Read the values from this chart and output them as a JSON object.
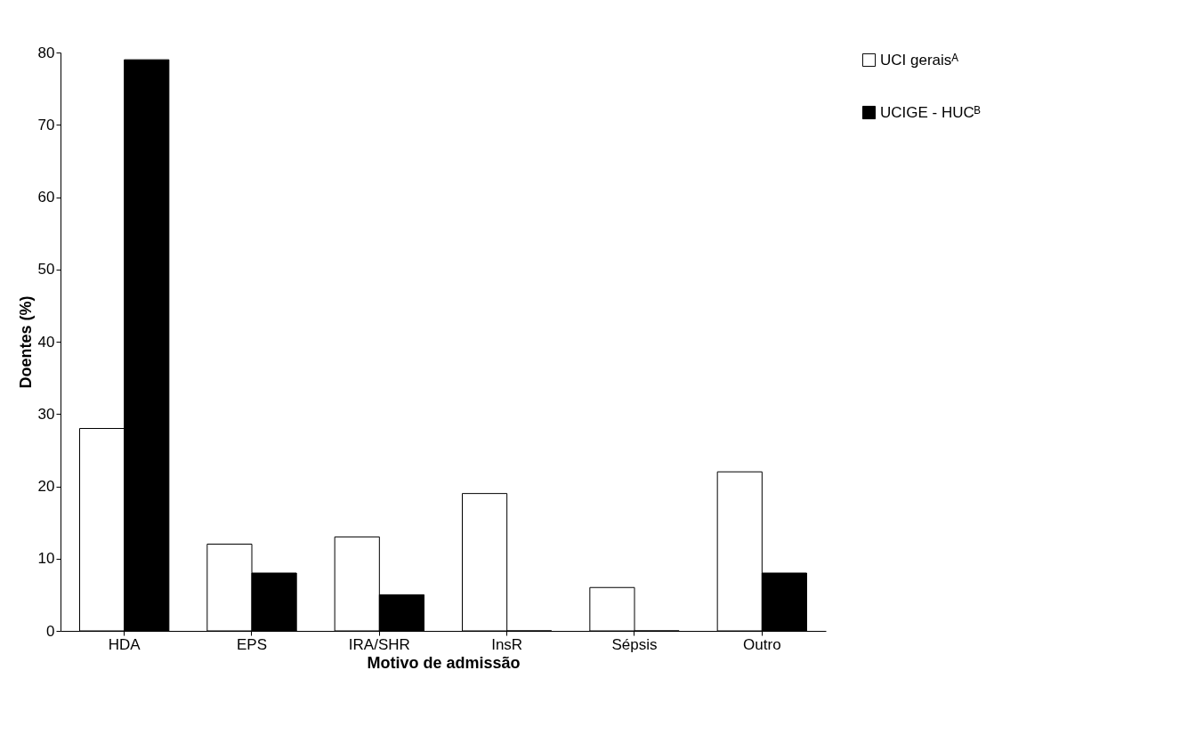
{
  "chart_data": {
    "type": "bar",
    "xlabel": "Motivo de admissão",
    "ylabel": "Doentes (%)",
    "categories": [
      "HDA",
      "EPS",
      "IRA/SHR",
      "InsR",
      "Sépsis",
      "Outro"
    ],
    "series": [
      {
        "name": "UCI geraisᴬ",
        "color": "#ffffff",
        "values": [
          28,
          12,
          13,
          19,
          6,
          22
        ]
      },
      {
        "name": "UCIGE - HUCᴮ",
        "color": "#000000",
        "values": [
          79,
          8,
          5,
          0,
          0,
          8
        ]
      }
    ],
    "ylim": [
      0,
      80
    ],
    "yticks": [
      0,
      10,
      20,
      30,
      40,
      50,
      60,
      70,
      80
    ],
    "grid": false,
    "legend": "right"
  }
}
